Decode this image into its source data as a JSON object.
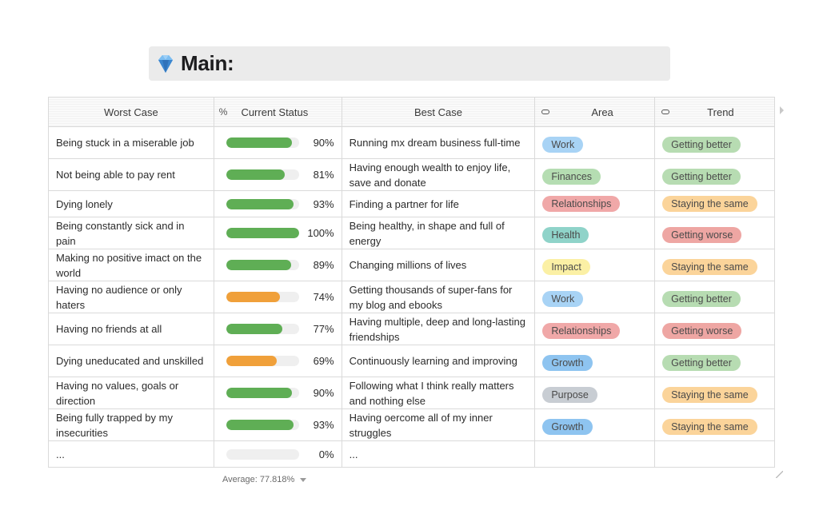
{
  "title": {
    "emoji": "gem-icon",
    "text": "Main:"
  },
  "columns": {
    "worst": "Worst Case",
    "status_icon": "%",
    "status": "Current Status",
    "best": "Best Case",
    "area": "Area",
    "trend": "Trend"
  },
  "colors": {
    "bar_green": "#5fae55",
    "bar_orange": "#f0a03a",
    "area": {
      "Work": "#a8d3f5",
      "Finances": "#b5ddb2",
      "Relationships": "#f0a8a8",
      "Health": "#8fd3c9",
      "Impact": "#fbf0a5",
      "Growth": "#8ec4f0",
      "Purpose": "#c8cdd3"
    },
    "trend": {
      "Getting better": "#b7dcb2",
      "Staying the same": "#fbd49a",
      "Getting worse": "#eea6a3"
    }
  },
  "rows": [
    {
      "worst": "Being stuck in a miserable job",
      "pct": 90,
      "pct_label": "90%",
      "bar": "green",
      "best": "Running mx dream business full-time",
      "area": "Work",
      "trend": "Getting better"
    },
    {
      "worst": "Not being able to pay rent",
      "pct": 81,
      "pct_label": "81%",
      "bar": "green",
      "best": "Having enough wealth to enjoy life, save and donate",
      "area": "Finances",
      "trend": "Getting better"
    },
    {
      "worst": "Dying lonely",
      "pct": 93,
      "pct_label": "93%",
      "bar": "green",
      "best": "Finding a partner for life",
      "area": "Relationships",
      "trend": "Staying the same"
    },
    {
      "worst": "Being constantly sick and in pain",
      "pct": 100,
      "pct_label": "100%",
      "bar": "green",
      "best": "Being healthy, in shape and full of energy",
      "area": "Health",
      "trend": "Getting worse"
    },
    {
      "worst": "Making no positive imact on the world",
      "pct": 89,
      "pct_label": "89%",
      "bar": "green",
      "best": "Changing millions of lives",
      "area": "Impact",
      "trend": "Staying the same"
    },
    {
      "worst": "Having no audience or only haters",
      "pct": 74,
      "pct_label": "74%",
      "bar": "orange",
      "best": "Getting thousands of super-fans for my blog and ebooks",
      "area": "Work",
      "trend": "Getting better"
    },
    {
      "worst": "Having no friends at all",
      "pct": 77,
      "pct_label": "77%",
      "bar": "green",
      "best": "Having multiple, deep and long-lasting friendships",
      "area": "Relationships",
      "trend": "Getting worse"
    },
    {
      "worst": "Dying uneducated and unskilled",
      "pct": 69,
      "pct_label": "69%",
      "bar": "orange",
      "best": "Continuously learning and improving",
      "area": "Growth",
      "trend": "Getting better"
    },
    {
      "worst": "Having no values, goals or direction",
      "pct": 90,
      "pct_label": "90%",
      "bar": "green",
      "best": "Following what I think really matters and nothing else",
      "area": "Purpose",
      "trend": "Staying the same"
    },
    {
      "worst": "Being fully trapped by my insecurities",
      "pct": 93,
      "pct_label": "93%",
      "bar": "green",
      "best": "Having oercome all of my inner struggles",
      "area": "Growth",
      "trend": "Staying the same"
    },
    {
      "worst": "...",
      "pct": 0,
      "pct_label": "0%",
      "bar": "green",
      "best": "...",
      "area": "",
      "trend": ""
    }
  ],
  "footer": {
    "average": "Average: 77.818%"
  }
}
